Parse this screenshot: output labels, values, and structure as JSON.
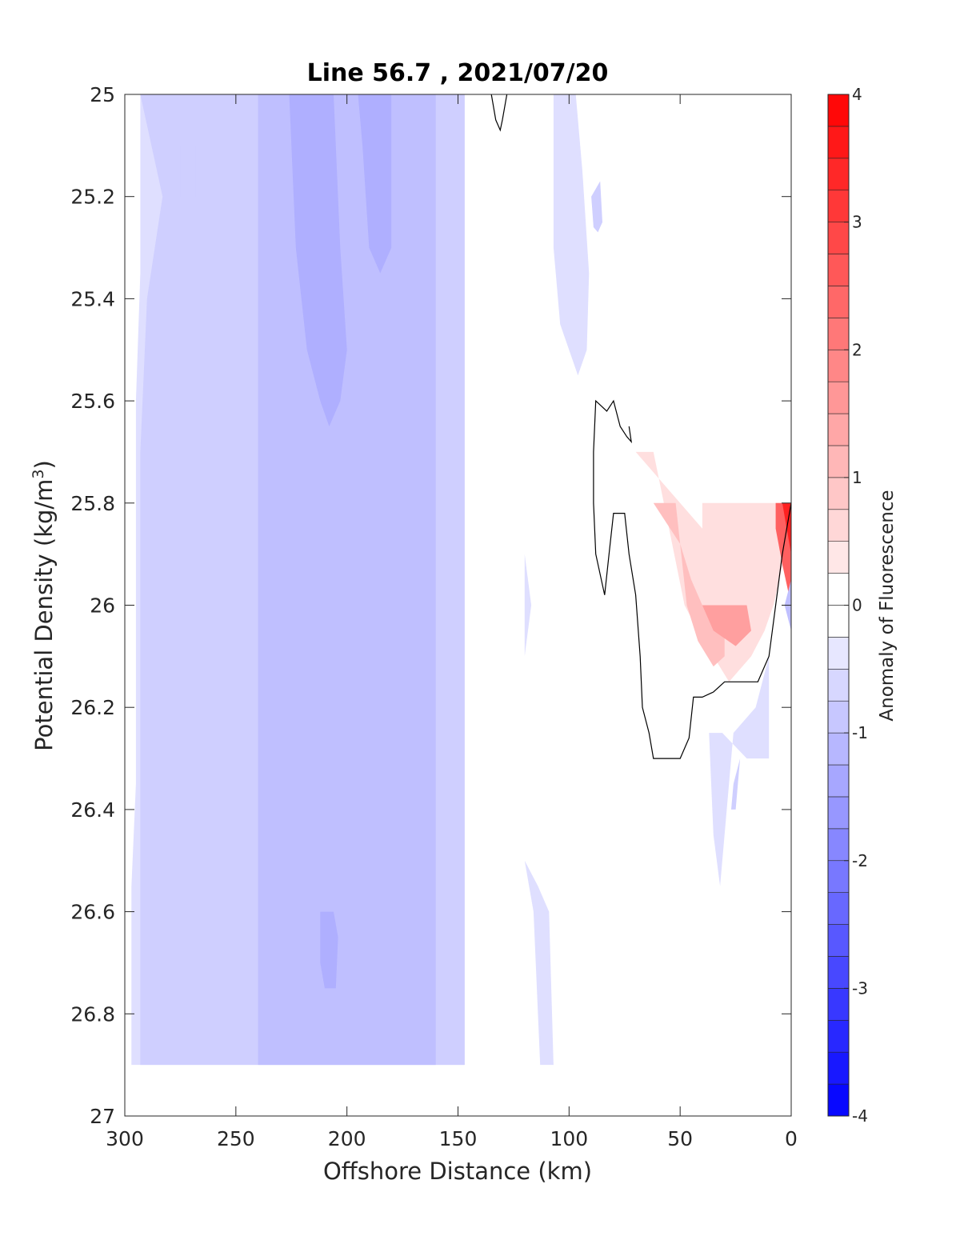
{
  "chart_data": {
    "type": "contour",
    "title": "Line 56.7 , 2021/07/20",
    "xlabel": "Offshore Distance (km)",
    "ylabel_main": "Potential Density (kg/m",
    "ylabel_sup": "3",
    "ylabel_close": ")",
    "colorbar_label": "Anomaly of Fluorescence",
    "xlim": [
      300,
      0
    ],
    "ylim": [
      25,
      27
    ],
    "y_reversed": true,
    "x_reversed": true,
    "xticks": [
      "300",
      "250",
      "200",
      "150",
      "100",
      "50",
      "0"
    ],
    "xtick_values": [
      300,
      250,
      200,
      150,
      100,
      50,
      0
    ],
    "yticks": [
      "25",
      "25.2",
      "25.4",
      "25.6",
      "25.8",
      "26",
      "26.2",
      "26.4",
      "26.6",
      "26.8",
      "27"
    ],
    "ytick_values": [
      25,
      25.2,
      25.4,
      25.6,
      25.8,
      26,
      26.2,
      26.4,
      26.6,
      26.8,
      27
    ],
    "colorbar": {
      "range": [
        -4,
        4
      ],
      "ticks": [
        "-4",
        "-3",
        "-2",
        "-1",
        "0",
        "1",
        "2",
        "3",
        "4"
      ],
      "tick_values": [
        -4,
        -3,
        -2,
        -1,
        0,
        1,
        2,
        3,
        4
      ],
      "level_step": 0.25,
      "colormap": "blue-white-red",
      "neg_color": "#0000ff",
      "pos_color": "#ff0000"
    },
    "filled_regions": [
      {
        "level": -0.5,
        "points": [
          [
            293,
            25
          ],
          [
            147,
            25
          ],
          [
            147,
            26.9
          ],
          [
            297,
            26.9
          ],
          [
            297,
            26.55
          ],
          [
            295,
            26.35
          ],
          [
            295,
            25.6
          ],
          [
            293,
            25.35
          ]
        ]
      },
      {
        "level": -0.5,
        "points": [
          [
            107,
            25
          ],
          [
            97,
            25
          ],
          [
            94,
            25.15
          ],
          [
            91,
            25.35
          ],
          [
            92,
            25.5
          ],
          [
            96,
            25.55
          ],
          [
            100,
            25.5
          ],
          [
            104,
            25.45
          ],
          [
            106,
            25.35
          ],
          [
            107,
            25.3
          ]
        ]
      },
      {
        "level": -0.5,
        "points": [
          [
            120,
            26.5
          ],
          [
            116,
            26.6
          ],
          [
            113,
            26.9
          ],
          [
            107,
            26.9
          ],
          [
            109,
            26.6
          ],
          [
            114,
            26.55
          ]
        ]
      },
      {
        "level": -0.5,
        "points": [
          [
            120,
            25.9
          ],
          [
            117,
            26
          ],
          [
            120,
            26.1
          ]
        ]
      },
      {
        "level": -0.5,
        "points": [
          [
            37,
            26.25
          ],
          [
            31,
            26.25
          ],
          [
            20,
            26.3
          ],
          [
            10,
            26.3
          ],
          [
            10,
            26.1
          ],
          [
            16,
            26.2
          ],
          [
            26,
            26.25
          ],
          [
            32,
            26.55
          ],
          [
            35,
            26.45
          ],
          [
            36,
            26.35
          ]
        ]
      },
      {
        "level": -0.75,
        "points": [
          [
            293,
            25
          ],
          [
            147,
            25
          ],
          [
            147,
            26.9
          ],
          [
            293,
            26.9
          ],
          [
            293,
            25.7
          ],
          [
            290,
            25.4
          ],
          [
            283,
            25.2
          ]
        ]
      },
      {
        "level": -1.0,
        "points": [
          [
            240,
            25
          ],
          [
            160,
            25
          ],
          [
            160,
            26.9
          ],
          [
            240,
            26.9
          ]
        ]
      },
      {
        "level": -0.75,
        "points": [
          [
            275,
            25.1
          ],
          [
            268,
            25.1
          ],
          [
            268,
            25.2
          ],
          [
            270,
            25.25
          ],
          [
            275,
            25.2
          ]
        ]
      },
      {
        "level": -0.75,
        "points": [
          [
            90,
            25.2
          ],
          [
            86,
            25.17
          ],
          [
            85,
            25.25
          ],
          [
            87,
            25.27
          ],
          [
            89,
            25.26
          ]
        ]
      },
      {
        "level": -0.75,
        "points": [
          [
            26,
            26.35
          ],
          [
            23,
            26.3
          ],
          [
            25,
            26.4
          ],
          [
            27,
            26.4
          ]
        ]
      },
      {
        "level": -1.25,
        "points": [
          [
            226,
            25
          ],
          [
            206,
            25
          ],
          [
            203,
            25.3
          ],
          [
            200,
            25.5
          ],
          [
            203,
            25.6
          ],
          [
            208,
            25.65
          ],
          [
            212,
            25.6
          ],
          [
            218,
            25.5
          ],
          [
            223,
            25.3
          ]
        ]
      },
      {
        "level": -1.25,
        "points": [
          [
            195,
            25
          ],
          [
            180,
            25
          ],
          [
            180,
            25.3
          ],
          [
            185,
            25.35
          ],
          [
            190,
            25.3
          ],
          [
            193,
            25.1
          ]
        ]
      },
      {
        "level": -1.25,
        "points": [
          [
            212,
            26.6
          ],
          [
            206,
            26.6
          ],
          [
            204,
            26.65
          ],
          [
            205,
            26.75
          ],
          [
            210,
            26.75
          ],
          [
            212,
            26.7
          ]
        ]
      },
      {
        "level": 0.5,
        "points": [
          [
            70,
            25.7
          ],
          [
            62,
            25.7
          ],
          [
            55,
            25.85
          ],
          [
            48,
            26
          ],
          [
            42,
            26.05
          ],
          [
            35,
            26.1
          ],
          [
            28,
            26.15
          ],
          [
            18,
            26.1
          ],
          [
            12,
            26.05
          ],
          [
            8,
            26
          ],
          [
            0,
            25.85
          ],
          [
            0,
            25.8
          ],
          [
            40,
            25.8
          ],
          [
            40,
            26
          ],
          [
            13,
            26
          ],
          [
            20,
            25.95
          ]
        ]
      },
      {
        "level": 1.0,
        "points": [
          [
            62,
            25.8
          ],
          [
            52,
            25.8
          ],
          [
            47,
            26
          ],
          [
            42,
            26.07
          ],
          [
            35,
            26.12
          ],
          [
            30,
            26.1
          ],
          [
            30,
            26
          ],
          [
            40,
            26
          ],
          [
            45,
            25.95
          ],
          [
            50,
            25.88
          ]
        ]
      },
      {
        "level": 1.5,
        "points": [
          [
            40,
            26
          ],
          [
            35,
            26.05
          ],
          [
            25,
            26.08
          ],
          [
            18,
            26.05
          ],
          [
            20,
            26
          ]
        ]
      },
      {
        "level": 2.5,
        "points": [
          [
            7,
            25.8
          ],
          [
            0,
            25.8
          ],
          [
            0,
            26.0
          ],
          [
            4,
            25.92
          ],
          [
            7,
            25.85
          ]
        ]
      },
      {
        "level": 3.5,
        "points": [
          [
            4,
            25.8
          ],
          [
            0,
            25.8
          ],
          [
            0,
            25.9
          ],
          [
            2,
            25.85
          ]
        ]
      },
      {
        "level": -1.0,
        "points": [
          [
            0,
            25.95
          ],
          [
            0,
            26.05
          ],
          [
            3,
            26.0
          ]
        ]
      }
    ],
    "zero_contours": [
      [
        [
          135,
          25
        ],
        [
          133,
          25.05
        ],
        [
          131,
          25.07
        ],
        [
          130,
          25.05
        ],
        [
          128,
          25
        ]
      ],
      [
        [
          73,
          25.65
        ],
        [
          72,
          25.68
        ],
        [
          74,
          25.67
        ],
        [
          77,
          25.65
        ],
        [
          80,
          25.6
        ],
        [
          83,
          25.62
        ],
        [
          88,
          25.6
        ],
        [
          89,
          25.7
        ],
        [
          89,
          25.8
        ],
        [
          88,
          25.9
        ],
        [
          84,
          25.98
        ],
        [
          82,
          25.9
        ],
        [
          80,
          25.82
        ],
        [
          75,
          25.82
        ],
        [
          73,
          25.9
        ],
        [
          70,
          25.98
        ],
        [
          68,
          26.1
        ],
        [
          67,
          26.2
        ],
        [
          64,
          26.25
        ],
        [
          62,
          26.3
        ],
        [
          55,
          26.3
        ],
        [
          50,
          26.3
        ],
        [
          46,
          26.26
        ],
        [
          44,
          26.18
        ],
        [
          40,
          26.18
        ],
        [
          35,
          26.17
        ],
        [
          30,
          26.15
        ],
        [
          25,
          26.15
        ],
        [
          20,
          26.15
        ],
        [
          15,
          26.15
        ],
        [
          10,
          26.1
        ],
        [
          7,
          26.0
        ],
        [
          4,
          25.9
        ],
        [
          2,
          25.85
        ],
        [
          0,
          25.8
        ]
      ]
    ]
  }
}
